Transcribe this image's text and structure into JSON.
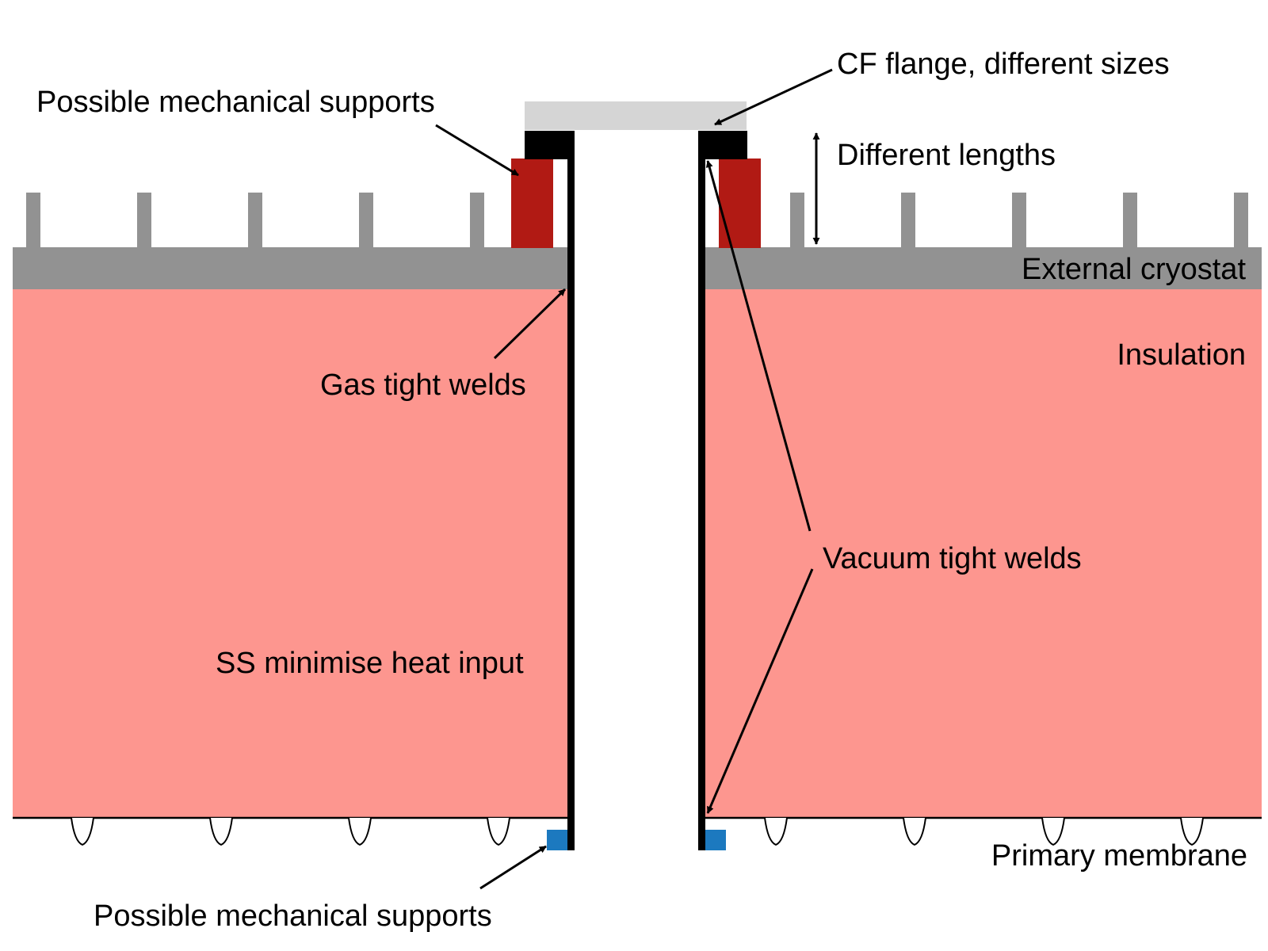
{
  "labels": {
    "cf_flange": "CF flange, different sizes",
    "supports_top": "Possible mechanical supports",
    "different_lengths": "Different lengths",
    "external_cryostat": "External cryostat",
    "insulation": "Insulation",
    "gas_tight_welds": "Gas tight welds",
    "vacuum_tight_welds": "Vacuum tight welds",
    "ss_heat_input": "SS minimise heat input",
    "primary_membrane": "Primary membrane",
    "supports_bottom": "Possible mechanical supports"
  },
  "colors": {
    "insulation": "#fd968f",
    "cryostat": "#929292",
    "flange": "#d5d5d5",
    "support_red": "#b11a14",
    "support_blue": "#1c79bf",
    "wall": "#000000"
  }
}
